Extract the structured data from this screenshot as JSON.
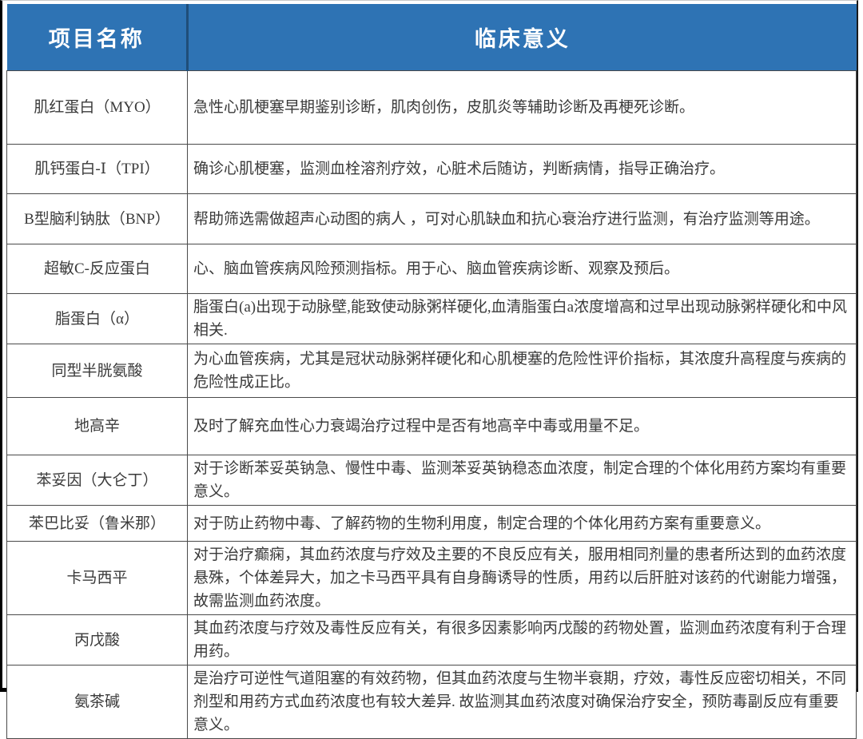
{
  "table": {
    "columns": [
      {
        "label": "项目名称"
      },
      {
        "label": "临床意义"
      }
    ],
    "rows": [
      {
        "name": "肌红蛋白（MYO）",
        "meaning": "急性心肌梗塞早期鉴别诊断，肌肉创伤，皮肌炎等辅助诊断及再梗死诊断。"
      },
      {
        "name": "肌钙蛋白-Ⅰ（TPI）",
        "meaning": "确诊心肌梗塞，监测血栓溶剂疗效，心脏术后随访，判断病情，指导正确治疗。"
      },
      {
        "name": "B型脑利钠肽（BNP）",
        "meaning": "帮助筛选需做超声心动图的病人 ，可对心肌缺血和抗心衰治疗进行监测，有治疗监测等用途。"
      },
      {
        "name": "超敏C-反应蛋白",
        "meaning": "心、脑血管疾病风险预测指标。用于心、脑血管疾病诊断、观察及预后。"
      },
      {
        "name": "脂蛋白（α）",
        "meaning": "脂蛋白(a)出现于动脉壁,能致使动脉粥样硬化,血清脂蛋白a浓度增高和过早出现动脉粥样硬化和中风相关."
      },
      {
        "name": "同型半胱氨酸",
        "meaning": "为心血管疾病，尤其是冠状动脉粥样硬化和心肌梗塞的危险性评价指标，其浓度升高程度与疾病的危险性成正比。"
      },
      {
        "name": "地高辛",
        "meaning": "及时了解充血性心力衰竭治疗过程中是否有地高辛中毒或用量不足。"
      },
      {
        "name": "苯妥因（大仑丁）",
        "meaning": "对于诊断苯妥英钠急、慢性中毒、监测苯妥英钠稳态血浓度，制定合理的个体化用药方案均有重要意义。"
      },
      {
        "name": "苯巴比妥（鲁米那）",
        "meaning": "对于防止药物中毒、了解药物的生物利用度，制定合理的个体化用药方案有重要意义。"
      },
      {
        "name": "卡马西平",
        "meaning": "对于治疗癫痫，其血药浓度与疗效及主要的不良反应有关，服用相同剂量的患者所达到的血药浓度悬殊，个体差异大，加之卡马西平具有自身酶诱导的性质，用药以后肝脏对该药的代谢能力增强，故需监测血药浓度。"
      },
      {
        "name": "丙戊酸",
        "meaning": "其血药浓度与疗效及毒性反应有关，有很多因素影响丙戊酸的药物处置，监测血药浓度有利于合理用药。"
      },
      {
        "name": "氨茶碱",
        "meaning": "是治疗可逆性气道阻塞的有效药物，但其血药浓度与生物半衰期，疗效，毒性反应密切相关，不同剂型和用药方式血药浓度也有较大差异. 故监测其血药浓度对确保治疗安全，预防毒副反应有重要意义。"
      }
    ],
    "colors": {
      "header_bg": "#2E73B4",
      "header_divider": "#1F4E79",
      "header_text": "#FFFFFF",
      "body_text": "#3A3A3A",
      "grid_line": "#4A4A4A",
      "outer_border": "#000000"
    }
  }
}
